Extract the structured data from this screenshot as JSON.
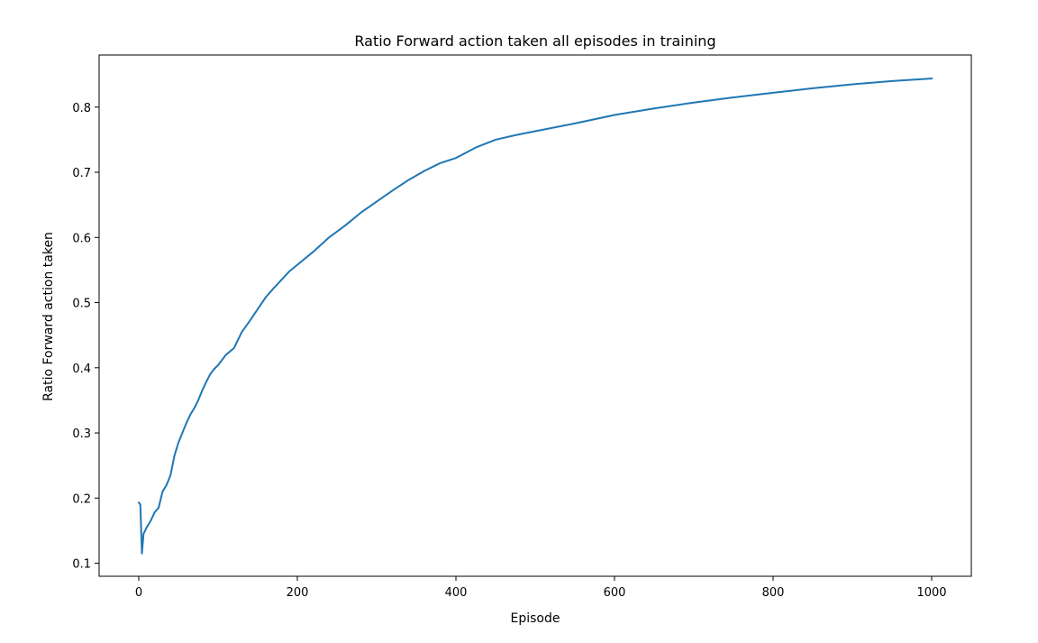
{
  "chart_data": {
    "type": "line",
    "title": "Ratio Forward action taken all episodes in training",
    "xlabel": "Episode",
    "ylabel": "Ratio Forward action taken",
    "xlim": [
      -50,
      1050
    ],
    "ylim": [
      0.08,
      0.88
    ],
    "xticks": [
      0,
      200,
      400,
      600,
      800,
      1000
    ],
    "yticks": [
      0.1,
      0.2,
      0.3,
      0.4,
      0.5,
      0.6,
      0.7,
      0.8
    ],
    "xtick_labels": [
      "0",
      "200",
      "400",
      "600",
      "800",
      "1000"
    ],
    "ytick_labels": [
      "0.1",
      "0.2",
      "0.3",
      "0.4",
      "0.5",
      "0.6",
      "0.7",
      "0.8"
    ],
    "grid": false,
    "legend": false,
    "series": [
      {
        "color": "#1f77b4",
        "x": [
          0,
          2,
          4,
          6,
          8,
          10,
          15,
          20,
          25,
          30,
          35,
          40,
          45,
          50,
          55,
          60,
          65,
          70,
          75,
          80,
          85,
          90,
          95,
          100,
          110,
          120,
          130,
          140,
          150,
          160,
          170,
          180,
          190,
          200,
          220,
          240,
          260,
          280,
          300,
          320,
          340,
          360,
          380,
          400,
          425,
          450,
          475,
          500,
          550,
          600,
          650,
          700,
          750,
          800,
          850,
          900,
          950,
          1000
        ],
        "y": [
          0.193,
          0.19,
          0.115,
          0.145,
          0.15,
          0.155,
          0.165,
          0.178,
          0.185,
          0.21,
          0.22,
          0.235,
          0.265,
          0.285,
          0.3,
          0.315,
          0.328,
          0.338,
          0.35,
          0.365,
          0.378,
          0.39,
          0.398,
          0.404,
          0.42,
          0.43,
          0.455,
          0.472,
          0.49,
          0.508,
          0.522,
          0.535,
          0.548,
          0.558,
          0.578,
          0.6,
          0.618,
          0.638,
          0.655,
          0.672,
          0.688,
          0.702,
          0.714,
          0.722,
          0.738,
          0.75,
          0.757,
          0.763,
          0.775,
          0.788,
          0.798,
          0.807,
          0.815,
          0.822,
          0.829,
          0.835,
          0.84,
          0.844
        ]
      }
    ]
  }
}
